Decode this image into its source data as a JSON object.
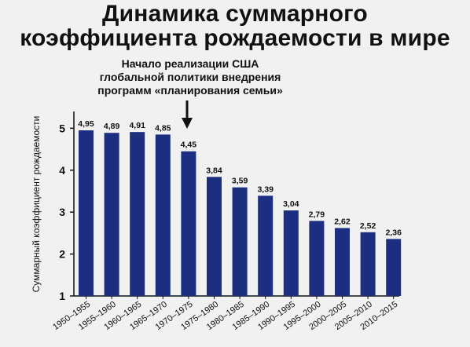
{
  "title": {
    "line1": "Динамика суммарного",
    "line2": "коэффициента рождаемости в мире"
  },
  "annotation": {
    "lines": [
      "Начало реализации США",
      "глобальной политики внедрения",
      "программ «планирования семьи»"
    ]
  },
  "colors": {
    "bar": "#1c2e80",
    "background": "#f1f1f1",
    "text": "#111111"
  },
  "chart_data": {
    "type": "bar",
    "ylabel": "Суммарный коэффициент рождаемости",
    "xlabel": "",
    "ylim": [
      1,
      5.4
    ],
    "yticks": [
      1,
      2,
      3,
      4,
      5
    ],
    "grid": false,
    "legend": "none",
    "categories": [
      "1950–1955",
      "1955–1960",
      "1960–1965",
      "1965–1970",
      "1970–1975",
      "1975–1980",
      "1980–1985",
      "1985–1990",
      "1990–1995",
      "1995–2000",
      "2000–2005",
      "2005–2010",
      "2010–2015"
    ],
    "values": [
      4.95,
      4.89,
      4.91,
      4.85,
      4.45,
      3.84,
      3.59,
      3.39,
      3.04,
      2.79,
      2.62,
      2.52,
      2.36
    ],
    "value_labels": [
      "4,95",
      "4,89",
      "4,91",
      "4,85",
      "4,45",
      "3,84",
      "3,59",
      "3,39",
      "3,04",
      "2,79",
      "2,62",
      "2,52",
      "2,36"
    ],
    "annotation_category": "1970–1975"
  }
}
